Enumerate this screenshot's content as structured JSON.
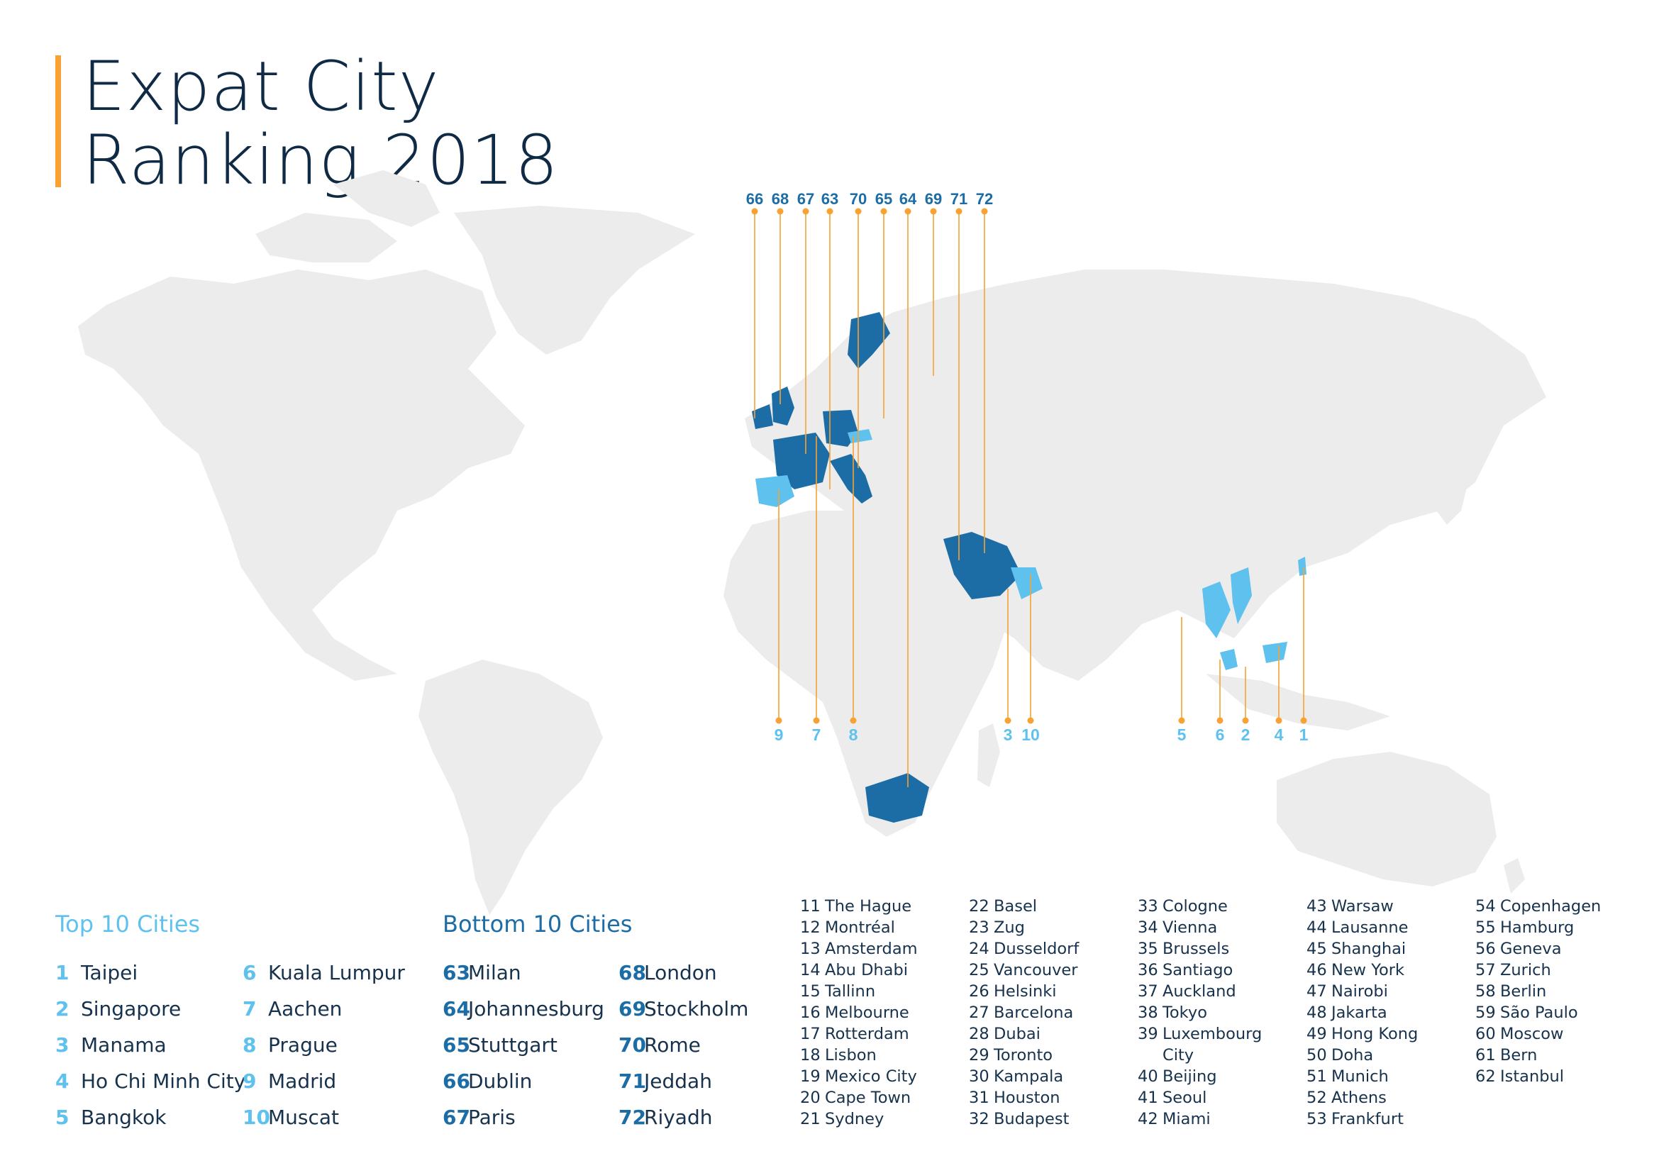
{
  "title": {
    "line1": "Expat City",
    "line2": "Ranking 2018"
  },
  "colors": {
    "accent": "#f7a233",
    "top": "#5fc1ee",
    "bottom": "#1c6da6",
    "land": "#ececec",
    "text": "#17324d"
  },
  "map_markers": {
    "bottom_labels": [
      "66",
      "68",
      "67",
      "63",
      "70",
      "65",
      "64",
      "69",
      "71",
      "72"
    ],
    "top_labels": [
      "9",
      "7",
      "8",
      "3",
      "10",
      "5",
      "6",
      "2",
      "4",
      "1"
    ]
  },
  "top10": {
    "title": "Top 10 Cities",
    "items": [
      {
        "rank": "1",
        "city": "Taipei"
      },
      {
        "rank": "2",
        "city": "Singapore"
      },
      {
        "rank": "3",
        "city": "Manama"
      },
      {
        "rank": "4",
        "city": "Ho Chi Minh City"
      },
      {
        "rank": "5",
        "city": "Bangkok"
      },
      {
        "rank": "6",
        "city": "Kuala Lumpur"
      },
      {
        "rank": "7",
        "city": "Aachen"
      },
      {
        "rank": "8",
        "city": "Prague"
      },
      {
        "rank": "9",
        "city": "Madrid"
      },
      {
        "rank": "10",
        "city": "Muscat"
      }
    ]
  },
  "bottom10": {
    "title": "Bottom 10 Cities",
    "items": [
      {
        "rank": "63",
        "city": "Milan"
      },
      {
        "rank": "64",
        "city": "Johannesburg"
      },
      {
        "rank": "65",
        "city": "Stuttgart"
      },
      {
        "rank": "66",
        "city": "Dublin"
      },
      {
        "rank": "67",
        "city": "Paris"
      },
      {
        "rank": "68",
        "city": "London"
      },
      {
        "rank": "69",
        "city": "Stockholm"
      },
      {
        "rank": "70",
        "city": "Rome"
      },
      {
        "rank": "71",
        "city": "Jeddah"
      },
      {
        "rank": "72",
        "city": "Riyadh"
      }
    ]
  },
  "ranking_columns": [
    [
      {
        "rank": "11",
        "city": "The Hague"
      },
      {
        "rank": "12",
        "city": "Montréal"
      },
      {
        "rank": "13",
        "city": "Amsterdam"
      },
      {
        "rank": "14",
        "city": "Abu Dhabi"
      },
      {
        "rank": "15",
        "city": "Tallinn"
      },
      {
        "rank": "16",
        "city": "Melbourne"
      },
      {
        "rank": "17",
        "city": "Rotterdam"
      },
      {
        "rank": "18",
        "city": "Lisbon"
      },
      {
        "rank": "19",
        "city": "Mexico City"
      },
      {
        "rank": "20",
        "city": "Cape Town"
      },
      {
        "rank": "21",
        "city": "Sydney"
      }
    ],
    [
      {
        "rank": "22",
        "city": "Basel"
      },
      {
        "rank": "23",
        "city": "Zug"
      },
      {
        "rank": "24",
        "city": "Dusseldorf"
      },
      {
        "rank": "25",
        "city": "Vancouver"
      },
      {
        "rank": "26",
        "city": "Helsinki"
      },
      {
        "rank": "27",
        "city": "Barcelona"
      },
      {
        "rank": "28",
        "city": "Dubai"
      },
      {
        "rank": "29",
        "city": "Toronto"
      },
      {
        "rank": "30",
        "city": "Kampala"
      },
      {
        "rank": "31",
        "city": "Houston"
      },
      {
        "rank": "32",
        "city": "Budapest"
      }
    ],
    [
      {
        "rank": "33",
        "city": "Cologne"
      },
      {
        "rank": "34",
        "city": "Vienna"
      },
      {
        "rank": "35",
        "city": "Brussels"
      },
      {
        "rank": "36",
        "city": "Santiago"
      },
      {
        "rank": "37",
        "city": "Auckland"
      },
      {
        "rank": "38",
        "city": "Tokyo"
      },
      {
        "rank": "39",
        "city": "Luxembourg"
      },
      {
        "rank": "",
        "city": "City"
      },
      {
        "rank": "40",
        "city": "Beijing"
      },
      {
        "rank": "41",
        "city": "Seoul"
      },
      {
        "rank": "42",
        "city": "Miami"
      }
    ],
    [
      {
        "rank": "43",
        "city": "Warsaw"
      },
      {
        "rank": "44",
        "city": "Lausanne"
      },
      {
        "rank": "45",
        "city": "Shanghai"
      },
      {
        "rank": "46",
        "city": "New York"
      },
      {
        "rank": "47",
        "city": "Nairobi"
      },
      {
        "rank": "48",
        "city": "Jakarta"
      },
      {
        "rank": "49",
        "city": "Hong Kong"
      },
      {
        "rank": "50",
        "city": "Doha"
      },
      {
        "rank": "51",
        "city": "Munich"
      },
      {
        "rank": "52",
        "city": "Athens"
      },
      {
        "rank": "53",
        "city": "Frankfurt"
      }
    ],
    [
      {
        "rank": "54",
        "city": "Copenhagen"
      },
      {
        "rank": "55",
        "city": "Hamburg"
      },
      {
        "rank": "56",
        "city": "Geneva"
      },
      {
        "rank": "57",
        "city": "Zurich"
      },
      {
        "rank": "58",
        "city": "Berlin"
      },
      {
        "rank": "59",
        "city": "São Paulo"
      },
      {
        "rank": "60",
        "city": "Moscow"
      },
      {
        "rank": "61",
        "city": "Bern"
      },
      {
        "rank": "62",
        "city": "Istanbul"
      }
    ]
  ]
}
